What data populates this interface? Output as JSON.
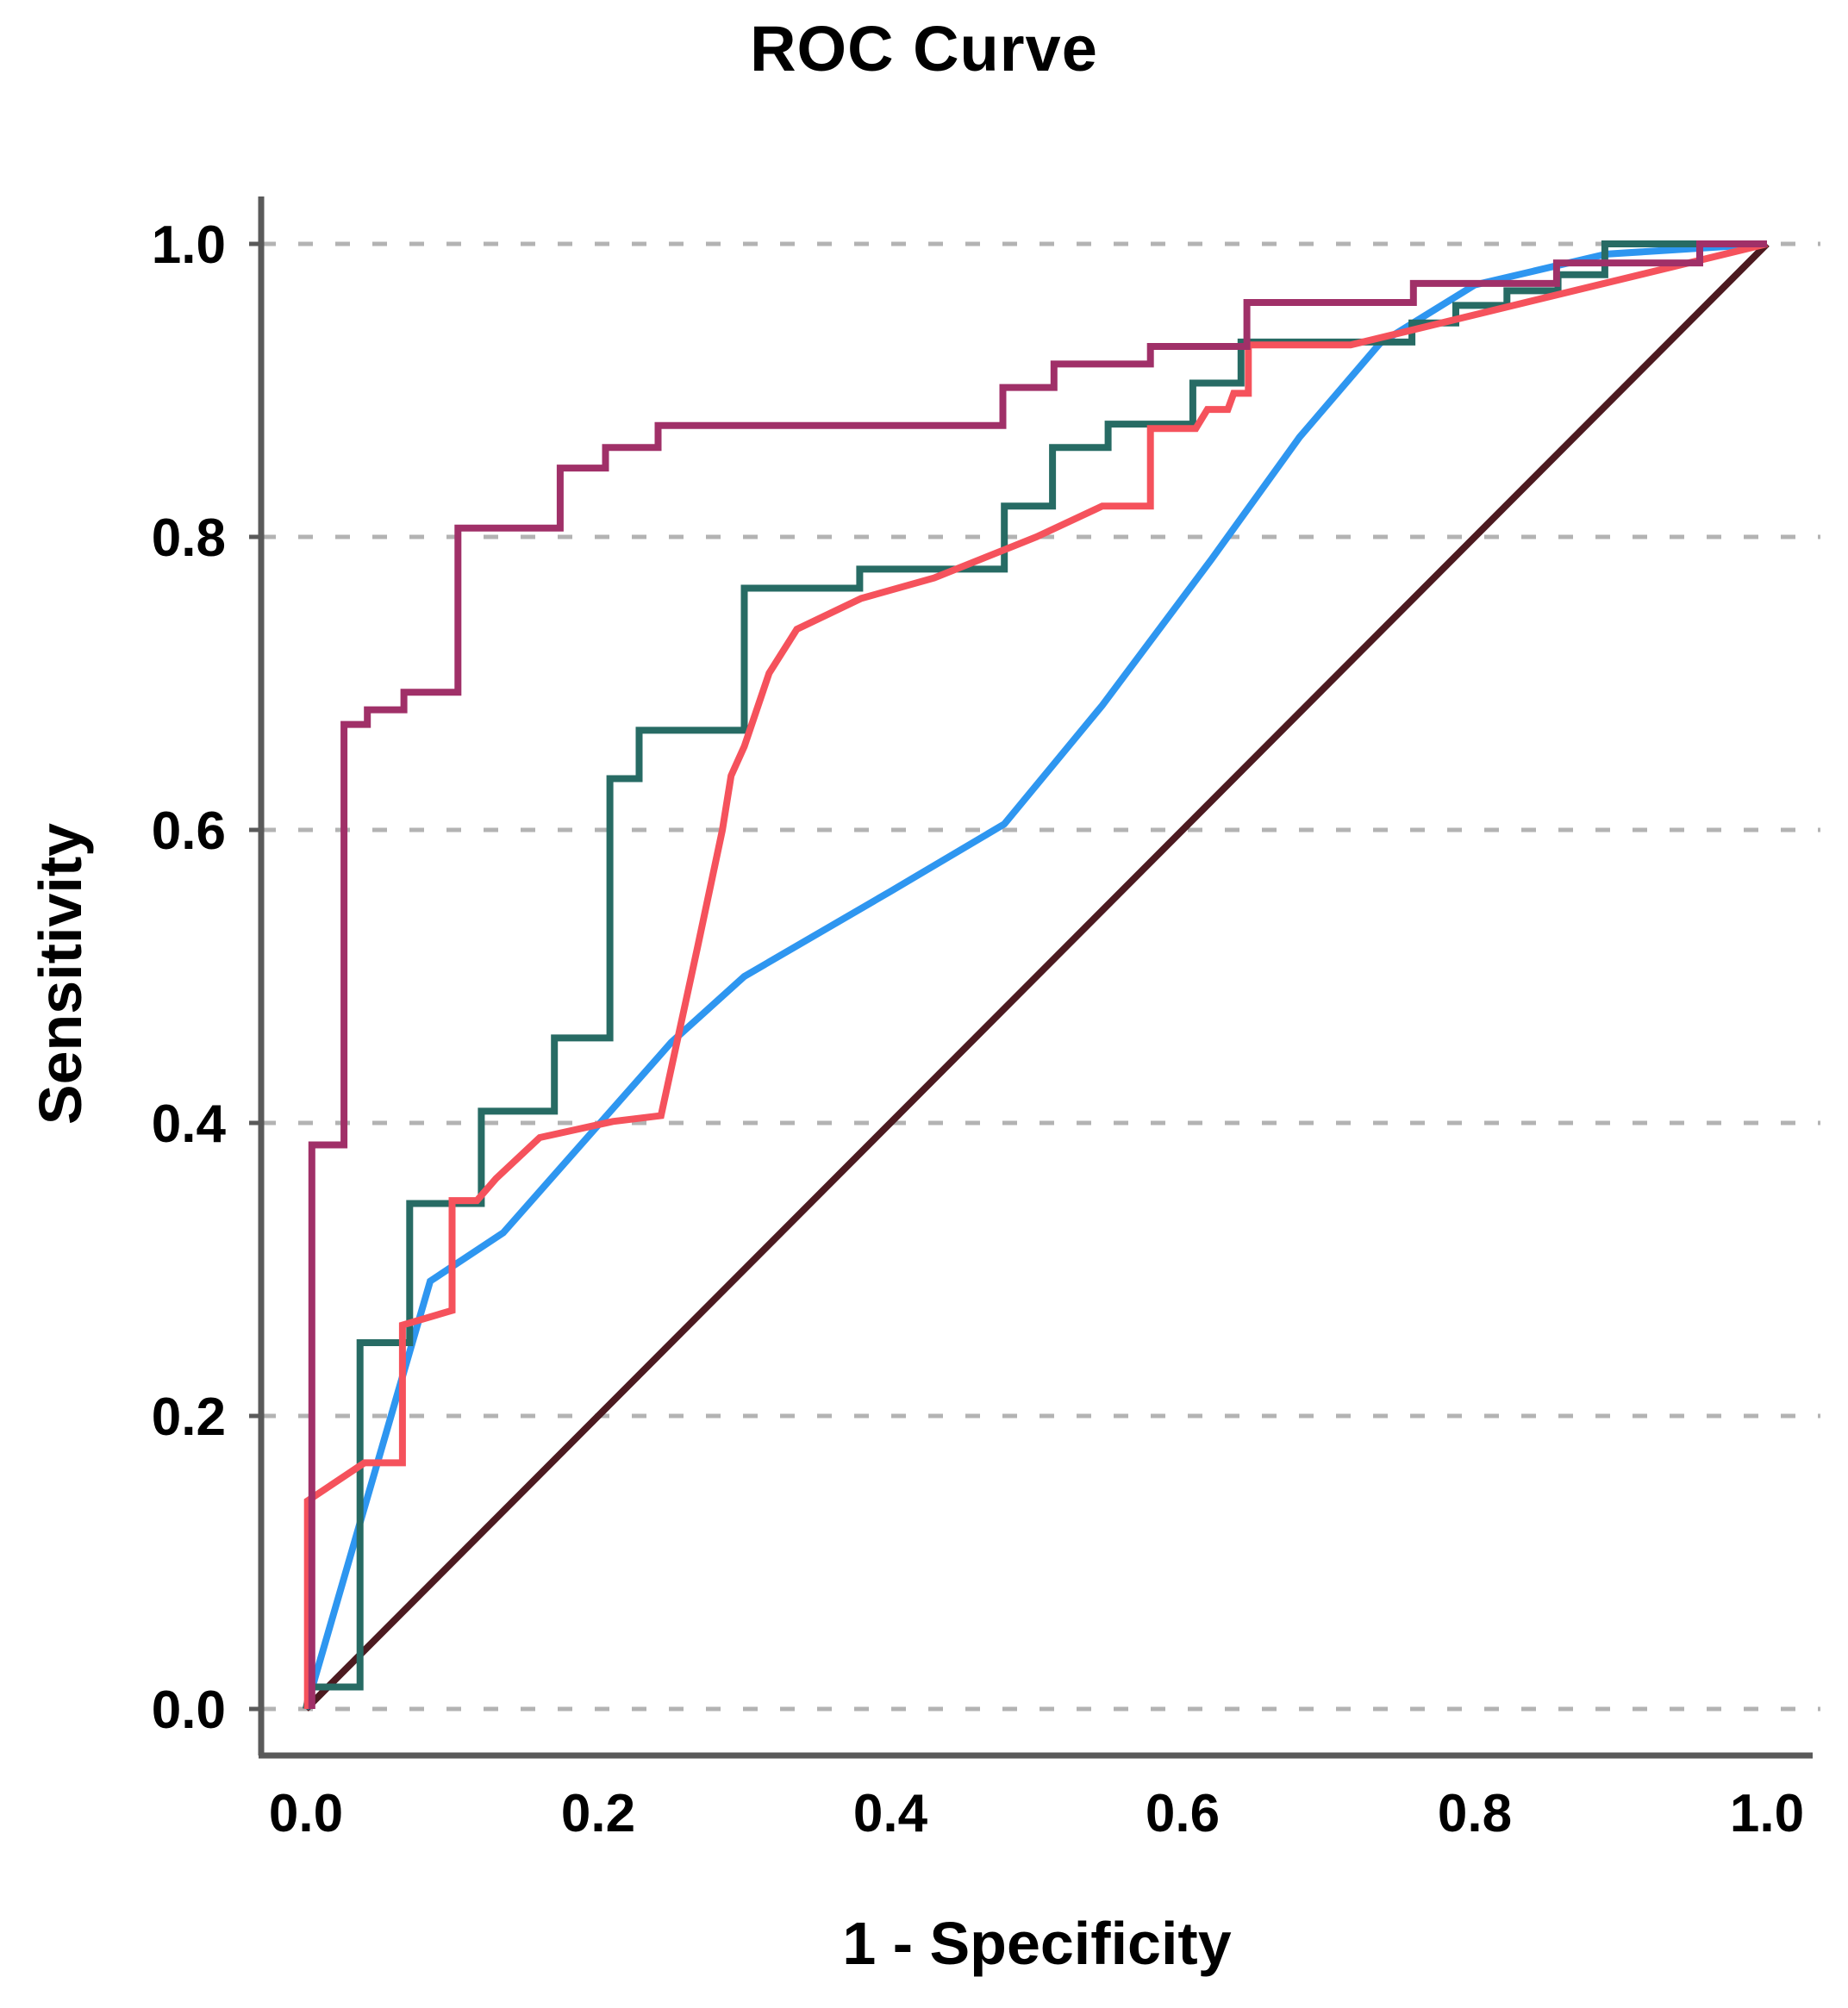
{
  "title": "ROC Curve",
  "axes": {
    "x": {
      "label": "1 - Specificity",
      "ticks": [
        "0.0",
        "0.2",
        "0.4",
        "0.6",
        "0.8",
        "1.0"
      ],
      "tick_values": [
        0.0,
        0.2,
        0.4,
        0.6,
        0.8,
        1.0
      ],
      "range": [
        0.0,
        1.0
      ]
    },
    "y": {
      "label": "Sensitivity",
      "ticks": [
        "0.0",
        "0.2",
        "0.4",
        "0.6",
        "0.8",
        "1.0"
      ],
      "tick_values": [
        0.0,
        0.2,
        0.4,
        0.6,
        0.8,
        1.0
      ],
      "range": [
        0.0,
        1.0
      ]
    }
  },
  "chart_data": {
    "type": "line",
    "title": "ROC Curve",
    "xlabel": "1 - Specificity",
    "ylabel": "Sensitivity",
    "xlim": [
      0.0,
      1.0
    ],
    "ylim": [
      0.0,
      1.0
    ],
    "grid": "horizontal-dashed",
    "legend_position": "none",
    "colors": {
      "grid": "#b3b3b3",
      "axis": "#5a5a5a",
      "text": "#000000",
      "background": "#ffffff"
    },
    "series": [
      {
        "name": "reference-diagonal",
        "color": "#4c1a20",
        "width": 8,
        "points": [
          [
            0,
            0
          ],
          [
            1,
            1
          ]
        ]
      },
      {
        "name": "blue-roc-curve",
        "color": "#2e96f0",
        "width": 8,
        "points": [
          [
            0,
            0
          ],
          [
            0.085,
            0.292
          ],
          [
            0.135,
            0.325
          ],
          [
            0.25,
            0.455
          ],
          [
            0.3,
            0.5
          ],
          [
            0.4,
            0.558
          ],
          [
            0.478,
            0.604
          ],
          [
            0.545,
            0.685
          ],
          [
            0.62,
            0.785
          ],
          [
            0.68,
            0.868
          ],
          [
            0.735,
            0.932
          ],
          [
            0.8,
            0.972
          ],
          [
            0.89,
            0.993
          ],
          [
            1,
            1
          ]
        ]
      },
      {
        "name": "teal-roc-curve",
        "color": "#276b64",
        "width": 8,
        "points": [
          [
            0,
            0
          ],
          [
            0.003,
            0.015
          ],
          [
            0.037,
            0.015
          ],
          [
            0.037,
            0.25
          ],
          [
            0.071,
            0.25
          ],
          [
            0.071,
            0.345
          ],
          [
            0.12,
            0.345
          ],
          [
            0.12,
            0.408
          ],
          [
            0.17,
            0.408
          ],
          [
            0.17,
            0.458
          ],
          [
            0.208,
            0.458
          ],
          [
            0.208,
            0.635
          ],
          [
            0.228,
            0.635
          ],
          [
            0.228,
            0.668
          ],
          [
            0.3,
            0.668
          ],
          [
            0.3,
            0.765
          ],
          [
            0.379,
            0.765
          ],
          [
            0.379,
            0.778
          ],
          [
            0.478,
            0.778
          ],
          [
            0.478,
            0.821
          ],
          [
            0.511,
            0.821
          ],
          [
            0.511,
            0.861
          ],
          [
            0.549,
            0.861
          ],
          [
            0.549,
            0.877
          ],
          [
            0.607,
            0.877
          ],
          [
            0.607,
            0.905
          ],
          [
            0.64,
            0.905
          ],
          [
            0.64,
            0.933
          ],
          [
            0.757,
            0.933
          ],
          [
            0.757,
            0.946
          ],
          [
            0.787,
            0.946
          ],
          [
            0.787,
            0.958
          ],
          [
            0.822,
            0.958
          ],
          [
            0.822,
            0.968
          ],
          [
            0.857,
            0.968
          ],
          [
            0.857,
            0.979
          ],
          [
            0.889,
            0.979
          ],
          [
            0.889,
            1.0
          ],
          [
            1,
            1
          ]
        ]
      },
      {
        "name": "red-roc-curve",
        "color": "#f5525c",
        "width": 8,
        "points": [
          [
            0.001,
            0
          ],
          [
            0.001,
            0.142
          ],
          [
            0.04,
            0.168
          ],
          [
            0.066,
            0.168
          ],
          [
            0.066,
            0.262
          ],
          [
            0.1,
            0.272
          ],
          [
            0.1,
            0.347
          ],
          [
            0.117,
            0.347
          ],
          [
            0.13,
            0.362
          ],
          [
            0.16,
            0.39
          ],
          [
            0.21,
            0.401
          ],
          [
            0.243,
            0.405
          ],
          [
            0.268,
            0.52
          ],
          [
            0.285,
            0.6
          ],
          [
            0.291,
            0.637
          ],
          [
            0.3,
            0.657
          ],
          [
            0.317,
            0.707
          ],
          [
            0.336,
            0.737
          ],
          [
            0.38,
            0.758
          ],
          [
            0.43,
            0.772
          ],
          [
            0.5,
            0.8
          ],
          [
            0.545,
            0.821
          ],
          [
            0.578,
            0.821
          ],
          [
            0.578,
            0.874
          ],
          [
            0.609,
            0.874
          ],
          [
            0.617,
            0.887
          ],
          [
            0.631,
            0.887
          ],
          [
            0.635,
            0.898
          ],
          [
            0.645,
            0.898
          ],
          [
            0.645,
            0.931
          ],
          [
            0.715,
            0.931
          ],
          [
            1,
            1
          ]
        ]
      },
      {
        "name": "magenta-roc-curve",
        "color": "#a03068",
        "width": 8,
        "points": [
          [
            0.004,
            0
          ],
          [
            0.004,
            0.385
          ],
          [
            0.026,
            0.385
          ],
          [
            0.026,
            0.672
          ],
          [
            0.042,
            0.672
          ],
          [
            0.042,
            0.682
          ],
          [
            0.067,
            0.682
          ],
          [
            0.067,
            0.694
          ],
          [
            0.104,
            0.694
          ],
          [
            0.104,
            0.806
          ],
          [
            0.174,
            0.806
          ],
          [
            0.174,
            0.847
          ],
          [
            0.205,
            0.847
          ],
          [
            0.205,
            0.861
          ],
          [
            0.241,
            0.861
          ],
          [
            0.241,
            0.876
          ],
          [
            0.477,
            0.876
          ],
          [
            0.477,
            0.902
          ],
          [
            0.512,
            0.902
          ],
          [
            0.512,
            0.918
          ],
          [
            0.578,
            0.918
          ],
          [
            0.578,
            0.93
          ],
          [
            0.644,
            0.93
          ],
          [
            0.644,
            0.96
          ],
          [
            0.758,
            0.96
          ],
          [
            0.758,
            0.973
          ],
          [
            0.856,
            0.973
          ],
          [
            0.856,
            0.987
          ],
          [
            0.954,
            0.987
          ],
          [
            0.954,
            1.0
          ],
          [
            1,
            1
          ]
        ]
      }
    ]
  }
}
